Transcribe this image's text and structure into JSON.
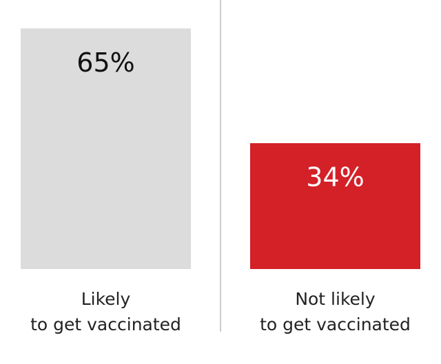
{
  "chart_data": {
    "type": "bar",
    "categories": [
      "Likely\nto get vaccinated",
      "Not likely\nto get vaccinated"
    ],
    "values": [
      65,
      34
    ],
    "value_labels": [
      "65%",
      "34%"
    ],
    "colors": [
      "#dcdcdc",
      "#d42027"
    ],
    "label_colors": [
      "#111111",
      "#ffffff"
    ]
  }
}
